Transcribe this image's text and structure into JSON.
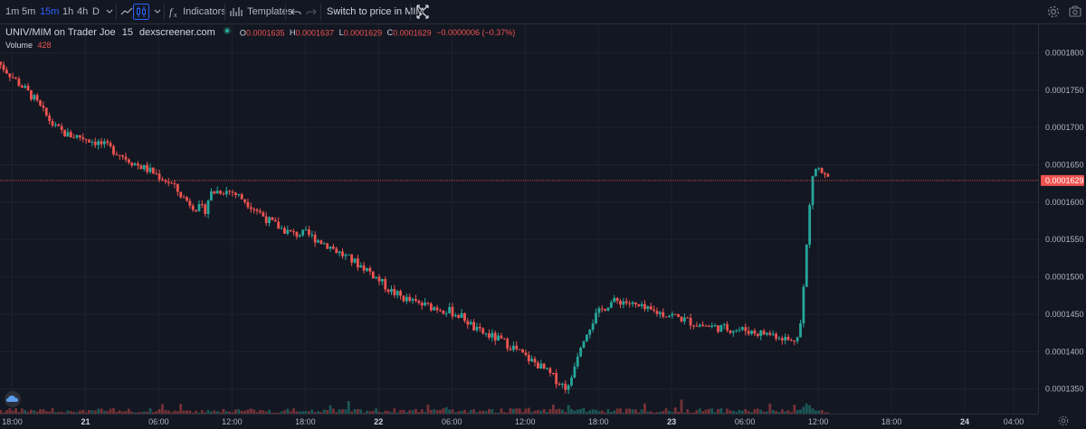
{
  "toolbar": {
    "intervals": [
      {
        "label": "1m",
        "active": false
      },
      {
        "label": "5m",
        "active": false
      },
      {
        "label": "15m",
        "active": true
      },
      {
        "label": "1h",
        "active": false
      },
      {
        "label": "4h",
        "active": false
      },
      {
        "label": "D",
        "active": false
      }
    ],
    "indicators_label": "Indicators",
    "templates_label": "Templates",
    "switch_label": "Switch to price in MIM"
  },
  "legend": {
    "symbol": "UNIV/MIM on Trader Joe",
    "interval": "15",
    "source": "dexscreener.com",
    "o_label": "O",
    "o_value": "0.0001635",
    "h_label": "H",
    "h_value": "0.0001637",
    "l_label": "L",
    "l_value": "0.0001629",
    "c_label": "C",
    "c_value": "0.0001629",
    "change": "−0.0000006 (−0.37%)"
  },
  "volume": {
    "label": "Volume",
    "value": "428"
  },
  "colors": {
    "up": "#26a69a",
    "down": "#ef5350",
    "background": "#131722",
    "grid": "#1e222d",
    "accent": "#2962ff"
  },
  "icons": [
    "chevron-down-icon",
    "line-chart-icon",
    "candle-icon",
    "fx-icon",
    "templates-icon",
    "undo-icon",
    "redo-icon",
    "fullscreen-icon",
    "settings-icon",
    "camera-icon",
    "cloud-icon"
  ],
  "chart_data": {
    "type": "candlestick",
    "price_ticks": [
      "0.0001800",
      "0.0001750",
      "0.0001700",
      "0.0001650",
      "0.0001600",
      "0.0001550",
      "0.0001500",
      "0.0001450",
      "0.0001400",
      "0.0001350"
    ],
    "price_tick_values": [
      0.00018,
      0.000175,
      0.00017,
      0.000165,
      0.00016,
      0.000155,
      0.00015,
      0.000145,
      0.00014,
      0.000135
    ],
    "time_ticks": [
      "18:00",
      "21",
      "06:00",
      "12:00",
      "18:00",
      "22",
      "06:00",
      "12:00",
      "18:00",
      "23",
      "06:00",
      "12:00",
      "18:00",
      "24",
      "04:00"
    ],
    "time_tick_bold": [
      false,
      true,
      false,
      false,
      false,
      true,
      false,
      false,
      false,
      true,
      false,
      false,
      false,
      true,
      false
    ],
    "x_range_hours": [
      -7,
      58.5
    ],
    "y_range": [
      0.0001317,
      0.0001838
    ],
    "last_price": "0.0001629",
    "last_value": 0.0001629,
    "price_path": [
      [
        -7.2,
        0.0001788
      ],
      [
        -6.0,
        0.0001768
      ],
      [
        -5.0,
        0.0001752
      ],
      [
        -4.2,
        0.0001738
      ],
      [
        -3.5,
        0.0001722
      ],
      [
        -2.5,
        0.00017
      ],
      [
        -1.5,
        0.000169
      ],
      [
        -0.5,
        0.0001688
      ],
      [
        1.0,
        0.000168
      ],
      [
        2.5,
        0.0001668
      ],
      [
        4.0,
        0.0001652
      ],
      [
        5.5,
        0.000164
      ],
      [
        7.0,
        0.0001625
      ],
      [
        8.0,
        0.0001606
      ],
      [
        9.0,
        0.0001593
      ],
      [
        9.8,
        0.000159
      ],
      [
        10.2,
        0.0001612
      ],
      [
        11.0,
        0.0001616
      ],
      [
        12.0,
        0.0001614
      ],
      [
        13.0,
        0.0001603
      ],
      [
        14.0,
        0.000159
      ],
      [
        15.0,
        0.0001575
      ],
      [
        16.0,
        0.0001565
      ],
      [
        17.0,
        0.0001557
      ],
      [
        18.0,
        0.0001558
      ],
      [
        19.0,
        0.000155
      ],
      [
        20.0,
        0.0001541
      ],
      [
        21.0,
        0.000153
      ],
      [
        22.0,
        0.000152
      ],
      [
        23.0,
        0.0001511
      ],
      [
        24.0,
        0.0001496
      ],
      [
        25.0,
        0.0001481
      ],
      [
        26.0,
        0.0001472
      ],
      [
        27.0,
        0.0001465
      ],
      [
        28.0,
        0.0001461
      ],
      [
        29.0,
        0.0001458
      ],
      [
        30.0,
        0.0001453
      ],
      [
        31.0,
        0.0001445
      ],
      [
        32.0,
        0.0001428
      ],
      [
        33.0,
        0.0001422
      ],
      [
        34.0,
        0.0001415
      ],
      [
        35.0,
        0.0001406
      ],
      [
        36.0,
        0.0001393
      ],
      [
        37.0,
        0.0001383
      ],
      [
        38.0,
        0.000137
      ],
      [
        39.0,
        0.0001356
      ],
      [
        39.6,
        0.0001351
      ],
      [
        40.0,
        0.0001382
      ],
      [
        40.6,
        0.0001413
      ],
      [
        41.2,
        0.0001432
      ],
      [
        41.8,
        0.0001448
      ],
      [
        42.4,
        0.0001458
      ],
      [
        43.0,
        0.0001466
      ],
      [
        44.0,
        0.0001468
      ],
      [
        45.0,
        0.0001461
      ],
      [
        46.0,
        0.0001455
      ],
      [
        47.0,
        0.0001452
      ],
      [
        48.0,
        0.0001449
      ],
      [
        49.0,
        0.0001443
      ],
      [
        50.0,
        0.0001437
      ],
      [
        51.0,
        0.0001434
      ],
      [
        52.0,
        0.0001432
      ],
      [
        53.0,
        0.000143
      ],
      [
        54.0,
        0.0001429
      ],
      [
        55.0,
        0.0001425
      ],
      [
        56.0,
        0.0001424
      ],
      [
        57.0,
        0.000142
      ],
      [
        57.8,
        0.0001413
      ],
      [
        58.2,
        0.000142
      ],
      [
        58.6,
        0.000144
      ],
      [
        58.9,
        0.0001508
      ],
      [
        59.2,
        0.0001575
      ],
      [
        59.5,
        0.0001635
      ],
      [
        59.9,
        0.0001647
      ],
      [
        60.5,
        0.0001635
      ],
      [
        61.0,
        0.0001629
      ]
    ]
  }
}
